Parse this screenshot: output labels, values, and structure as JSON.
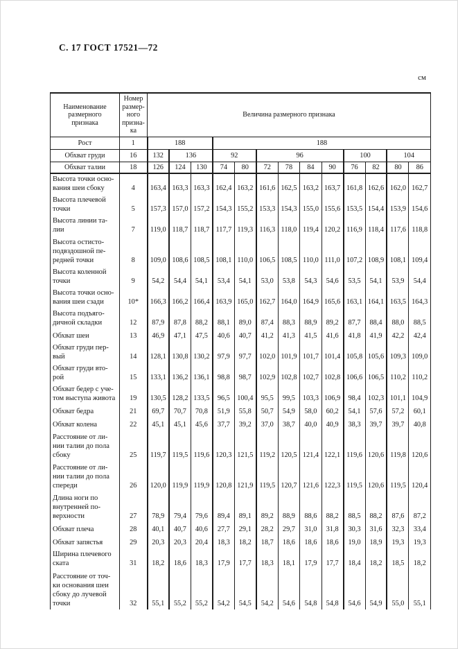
{
  "page": {
    "heading": "С. 17 ГОСТ 17521—72",
    "unit_label": "см"
  },
  "table": {
    "col_headers": {
      "name": "Наименование\nразмерного\nпризнака",
      "number": "Номер\nразмер-\nного\nпризна-\nка",
      "value": "Величина размерного признака"
    },
    "group_rows": [
      {
        "label": "Рост",
        "num": "1",
        "cells": [
          {
            "text": "188",
            "span": 3
          },
          {
            "text": "188",
            "span": 10
          }
        ]
      },
      {
        "label": "Обхват груди",
        "num": "16",
        "cells": [
          {
            "text": "132",
            "span": 1
          },
          {
            "text": "136",
            "span": 2
          },
          {
            "text": "92",
            "span": 2
          },
          {
            "text": "96",
            "span": 4
          },
          {
            "text": "100",
            "span": 2
          },
          {
            "text": "104",
            "span": 2
          }
        ]
      },
      {
        "label": "Обхват талии",
        "num": "18",
        "cells": [
          {
            "text": "126",
            "span": 1
          },
          {
            "text": "124",
            "span": 1
          },
          {
            "text": "130",
            "span": 1
          },
          {
            "text": "74",
            "span": 1
          },
          {
            "text": "80",
            "span": 1
          },
          {
            "text": "72",
            "span": 1
          },
          {
            "text": "78",
            "span": 1
          },
          {
            "text": "84",
            "span": 1
          },
          {
            "text": "90",
            "span": 1
          },
          {
            "text": "76",
            "span": 1
          },
          {
            "text": "82",
            "span": 1
          },
          {
            "text": "80",
            "span": 1
          },
          {
            "text": "86",
            "span": 1
          }
        ]
      }
    ],
    "rows": [
      {
        "name": "Высота точки осно-\nвания шеи сбоку",
        "num": "4",
        "values": [
          "163,4",
          "163,3",
          "163,3",
          "162,4",
          "163,2",
          "161,6",
          "162,5",
          "163,2",
          "163,7",
          "161,8",
          "162,6",
          "162,0",
          "162,7"
        ]
      },
      {
        "name": "Высота плечевой\nточки",
        "num": "5",
        "values": [
          "157,3",
          "157,0",
          "157,2",
          "154,3",
          "155,2",
          "153,3",
          "154,3",
          "155,0",
          "155,6",
          "153,5",
          "154,4",
          "153,9",
          "154,6"
        ]
      },
      {
        "name": "Высота линии та-\nлии",
        "num": "7",
        "values": [
          "119,0",
          "118,7",
          "118,7",
          "117,7",
          "119,3",
          "116,3",
          "118,0",
          "119,4",
          "120,2",
          "116,9",
          "118,4",
          "117,6",
          "118,8"
        ]
      },
      {
        "name": "Высота остисто-\nподвздошной пе-\nредней точки",
        "num": "8",
        "values": [
          "109,0",
          "108,6",
          "108,5",
          "108,1",
          "110,0",
          "106,5",
          "108,5",
          "110,0",
          "111,0",
          "107,2",
          "108,9",
          "108,1",
          "109,4"
        ]
      },
      {
        "name": "Высота коленной\nточки",
        "num": "9",
        "values": [
          "54,2",
          "54,4",
          "54,1",
          "53,4",
          "54,1",
          "53,0",
          "53,8",
          "54,3",
          "54,6",
          "53,5",
          "54,1",
          "53,9",
          "54,4"
        ]
      },
      {
        "name": "Высота точки осно-\nвания шеи сзади",
        "num": "10*",
        "values": [
          "166,3",
          "166,2",
          "166,4",
          "163,9",
          "165,0",
          "162,7",
          "164,0",
          "164,9",
          "165,6",
          "163,1",
          "164,1",
          "163,5",
          "164,3"
        ]
      },
      {
        "name": "Высота подъяго-\nдичной складки",
        "num": "12",
        "values": [
          "87,9",
          "87,8",
          "88,2",
          "88,1",
          "89,0",
          "87,4",
          "88,3",
          "88,9",
          "89,2",
          "87,7",
          "88,4",
          "88,0",
          "88,5"
        ]
      },
      {
        "name": "Обхват шеи",
        "num": "13",
        "values": [
          "46,9",
          "47,1",
          "47,5",
          "40,6",
          "40,7",
          "41,2",
          "41,3",
          "41,5",
          "41,6",
          "41,8",
          "41,9",
          "42,2",
          "42,4"
        ]
      },
      {
        "name": "Обхват груди пер-\nвый",
        "num": "14",
        "values": [
          "128,1",
          "130,8",
          "130,2",
          "97,9",
          "97,7",
          "102,0",
          "101,9",
          "101,7",
          "101,4",
          "105,8",
          "105,6",
          "109,3",
          "109,0"
        ]
      },
      {
        "name": "Обхват груди вто-\nрой",
        "num": "15",
        "values": [
          "133,1",
          "136,2",
          "136,1",
          "98,8",
          "98,7",
          "102,9",
          "102,8",
          "102,7",
          "102,8",
          "106,6",
          "106,5",
          "110,2",
          "110,2"
        ]
      },
      {
        "name": "Обхват бедер с уче-\nтом выступа живота",
        "num": "19",
        "values": [
          "130,5",
          "128,2",
          "133,5",
          "96,5",
          "100,4",
          "95,5",
          "99,5",
          "103,3",
          "106,9",
          "98,4",
          "102,3",
          "101,1",
          "104,9"
        ]
      },
      {
        "name": "Обхват бедра",
        "num": "21",
        "values": [
          "69,7",
          "70,7",
          "70,8",
          "51,9",
          "55,8",
          "50,7",
          "54,9",
          "58,0",
          "60,2",
          "54,1",
          "57,6",
          "57,2",
          "60,1"
        ]
      },
      {
        "name": "Обхват колена",
        "num": "22",
        "values": [
          "45,1",
          "45,1",
          "45,6",
          "37,7",
          "39,2",
          "37,0",
          "38,7",
          "40,0",
          "40,9",
          "38,3",
          "39,7",
          "39,7",
          "40,8"
        ]
      },
      {
        "name": "Расстояние от ли-\nнии талии до пола\nсбоку",
        "num": "25",
        "values": [
          "119,7",
          "119,5",
          "119,6",
          "120,3",
          "121,5",
          "119,2",
          "120,5",
          "121,4",
          "122,1",
          "119,6",
          "120,6",
          "119,8",
          "120,6"
        ]
      },
      {
        "name": "Расстояние от ли-\nнии талии до пола\nспереди",
        "num": "26",
        "values": [
          "120,0",
          "119,9",
          "119,9",
          "120,8",
          "121,9",
          "119,5",
          "120,7",
          "121,6",
          "122,3",
          "119,5",
          "120,6",
          "119,5",
          "120,4"
        ]
      },
      {
        "name": "Длина ноги по\nвнутренней по-\nверхности",
        "num": "27",
        "values": [
          "78,9",
          "79,4",
          "79,6",
          "89,4",
          "89,1",
          "89,2",
          "88,9",
          "88,6",
          "88,2",
          "88,5",
          "88,2",
          "87,6",
          "87,2"
        ]
      },
      {
        "name": "Обхват плеча",
        "num": "28",
        "values": [
          "40,1",
          "40,7",
          "40,6",
          "27,7",
          "29,1",
          "28,2",
          "29,7",
          "31,0",
          "31,8",
          "30,3",
          "31,6",
          "32,3",
          "33,4"
        ]
      },
      {
        "name": "Обхват запястья",
        "num": "29",
        "values": [
          "20,3",
          "20,3",
          "20,4",
          "18,3",
          "18,2",
          "18,7",
          "18,6",
          "18,6",
          "18,6",
          "19,0",
          "18,9",
          "19,3",
          "19,3"
        ]
      },
      {
        "name": "Ширина плечевого\nската",
        "num": "31",
        "values": [
          "18,2",
          "18,6",
          "18,3",
          "17,9",
          "17,7",
          "18,3",
          "18,1",
          "17,9",
          "17,7",
          "18,4",
          "18,2",
          "18,5",
          "18,2"
        ]
      },
      {
        "name": "Расстояние от точ-\nки основания шеи\nсбоку до лучевой\nточки",
        "num": "32",
        "values": [
          "55,1",
          "55,2",
          "55,2",
          "54,2",
          "54,5",
          "54,2",
          "54,6",
          "54,8",
          "54,8",
          "54,6",
          "54,9",
          "55,0",
          "55,1"
        ]
      }
    ]
  }
}
